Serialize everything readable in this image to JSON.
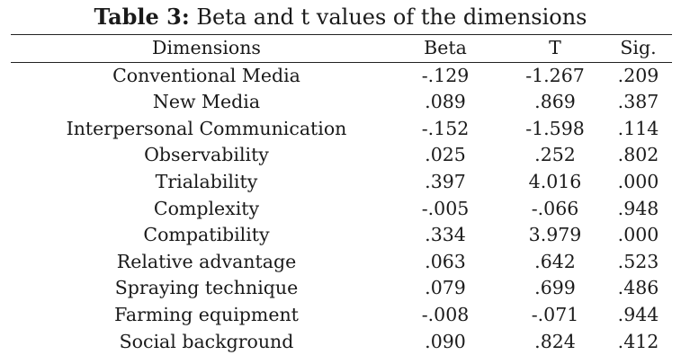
{
  "caption": {
    "label": "Table 3:",
    "text": " Beta and t values of the dimensions"
  },
  "table": {
    "headers": [
      "Dimensions",
      "Beta",
      "T",
      "Sig."
    ],
    "rows": [
      [
        "Conventional Media",
        "-.129",
        "-1.267",
        ".209"
      ],
      [
        "New Media",
        ".089",
        ".869",
        ".387"
      ],
      [
        "Interpersonal Communication",
        "-.152",
        "-1.598",
        ".114"
      ],
      [
        "Observability",
        ".025",
        ".252",
        ".802"
      ],
      [
        "Trialability",
        ".397",
        "4.016",
        ".000"
      ],
      [
        "Complexity",
        "-.005",
        "-.066",
        ".948"
      ],
      [
        "Compatibility",
        ".334",
        "3.979",
        ".000"
      ],
      [
        "Relative advantage",
        ".063",
        ".642",
        ".523"
      ],
      [
        "Spraying technique",
        ".079",
        ".699",
        ".486"
      ],
      [
        "Farming equipment",
        "-.008",
        "-.071",
        ".944"
      ],
      [
        "Social background",
        ".090",
        ".824",
        ".412"
      ]
    ]
  }
}
